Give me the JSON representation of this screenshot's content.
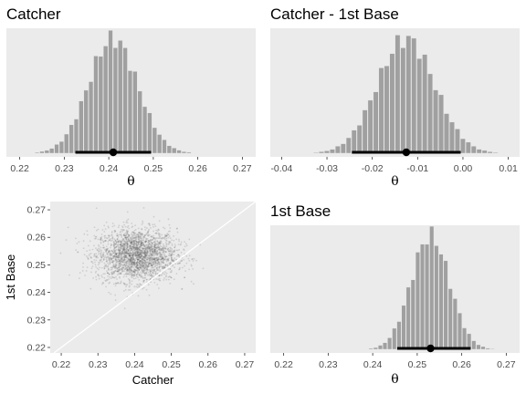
{
  "chart_data": [
    {
      "id": "catcher",
      "type": "histogram",
      "title": "Catcher",
      "xlabel": "θ",
      "xlim": [
        0.217,
        0.273
      ],
      "xticks": [
        "0.22",
        "0.23",
        "0.24",
        "0.25",
        "0.26",
        "0.27"
      ],
      "xtick_values": [
        0.22,
        0.23,
        0.24,
        0.25,
        0.26,
        0.27
      ],
      "hist_center": 0.241,
      "hist_sd": 0.0055,
      "bin_width": 0.0011,
      "point_estimate": 0.241,
      "interval": [
        0.2325,
        0.2495
      ]
    },
    {
      "id": "diff",
      "type": "histogram",
      "title": "Catcher - 1st Base",
      "xlabel": "θ",
      "xlim": [
        -0.0425,
        0.0125
      ],
      "xticks": [
        "-0.04",
        "-0.03",
        "-0.02",
        "-0.01",
        "0.00",
        "0.01"
      ],
      "xtick_values": [
        -0.04,
        -0.03,
        -0.02,
        -0.01,
        0.0,
        0.01
      ],
      "hist_center": -0.0125,
      "hist_sd": 0.0063,
      "bin_width": 0.0012,
      "point_estimate": -0.0125,
      "interval": [
        -0.0245,
        -0.0005
      ]
    },
    {
      "id": "scatter",
      "type": "scatter",
      "xlabel": "Catcher",
      "ylabel": "1st Base",
      "xlim": [
        0.217,
        0.273
      ],
      "ylim": [
        0.218,
        0.273
      ],
      "xticks": [
        "0.22",
        "0.23",
        "0.24",
        "0.25",
        "0.26",
        "0.27"
      ],
      "xtick_values": [
        0.22,
        0.23,
        0.24,
        0.25,
        0.26,
        0.27
      ],
      "yticks": [
        "0.22",
        "0.23",
        "0.24",
        "0.25",
        "0.26",
        "0.27"
      ],
      "ytick_values": [
        0.22,
        0.23,
        0.24,
        0.25,
        0.26,
        0.27
      ],
      "center": [
        0.2405,
        0.2535
      ],
      "sd": [
        0.0055,
        0.0048
      ],
      "reference_line": "y = x"
    },
    {
      "id": "firstbase",
      "type": "histogram",
      "title": "1st Base",
      "xlabel": "θ",
      "xlim": [
        0.217,
        0.273
      ],
      "xticks": [
        "0.22",
        "0.23",
        "0.24",
        "0.25",
        "0.26",
        "0.27"
      ],
      "xtick_values": [
        0.22,
        0.23,
        0.24,
        0.25,
        0.26,
        0.27
      ],
      "hist_center": 0.253,
      "hist_sd": 0.0043,
      "bin_width": 0.00105,
      "point_estimate": 0.253,
      "interval": [
        0.2455,
        0.262
      ]
    }
  ],
  "colors": {
    "panel_bg": "#ebebeb",
    "bars": "#a0a0a0",
    "interval": "#000000",
    "points": "#505050",
    "reference_line": "#ffffff"
  }
}
